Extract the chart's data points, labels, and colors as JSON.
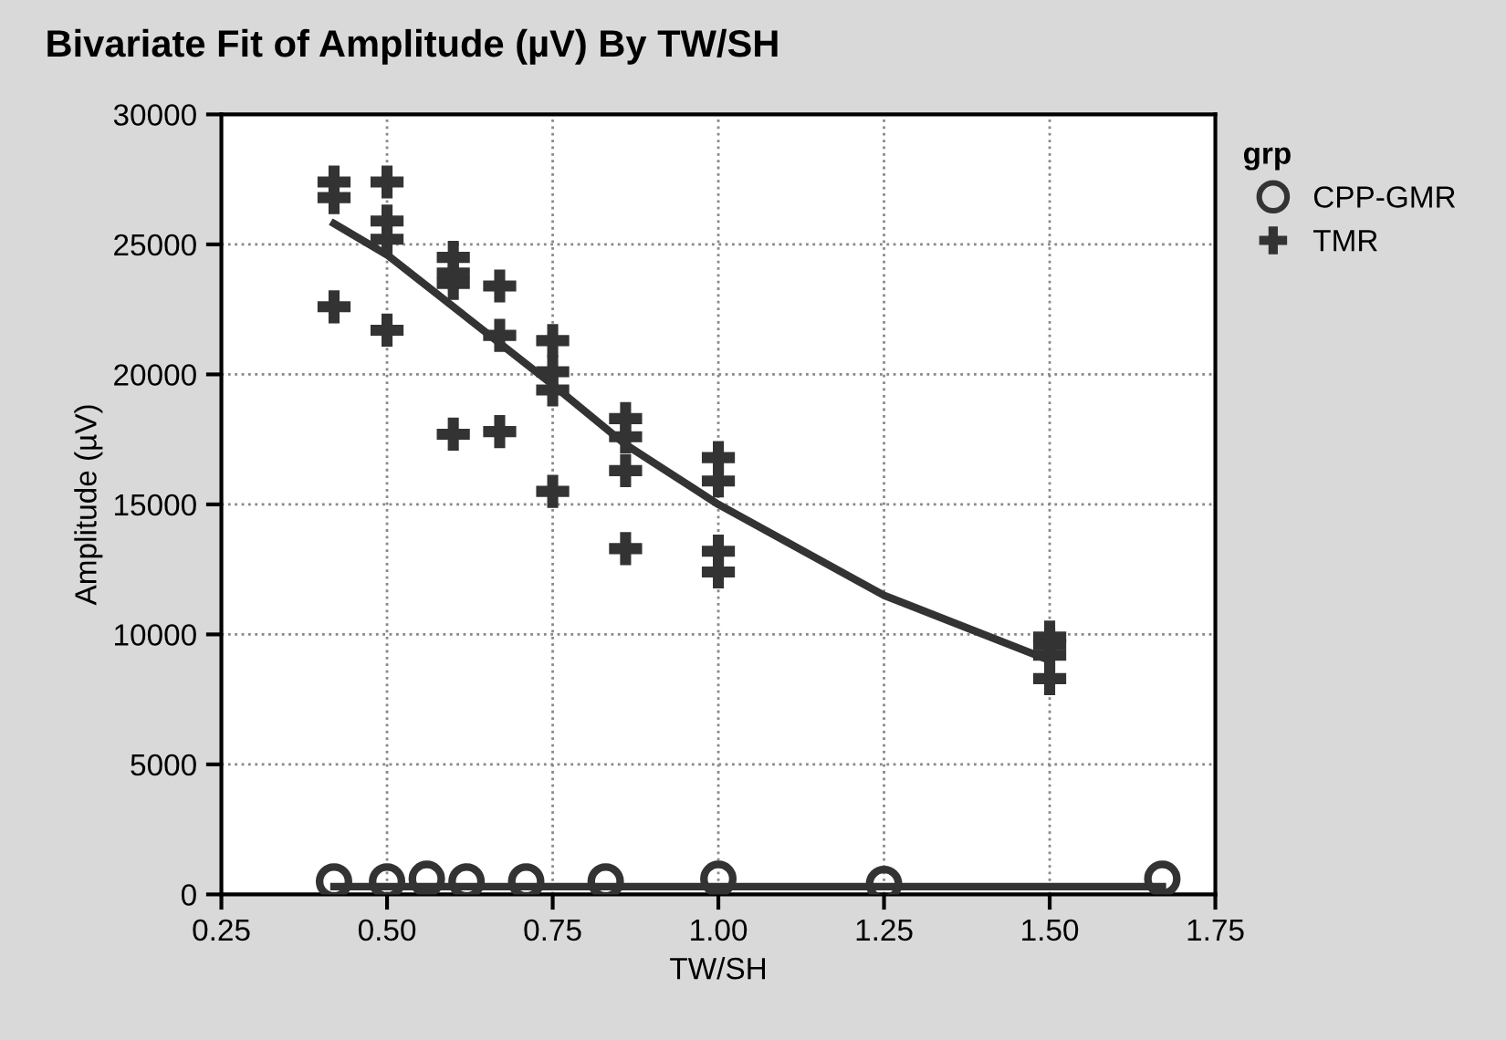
{
  "chart_data": {
    "type": "scatter",
    "title": "Bivariate Fit of Amplitude (µV) By TW/SH",
    "xlabel": "TW/SH",
    "ylabel": "Amplitude (µV)",
    "legend_title": "grp",
    "series": [
      {
        "name": "CPP-GMR",
        "marker": "circle",
        "color": "#333333",
        "x": [
          0.42,
          0.5,
          0.56,
          0.62,
          0.71,
          0.83,
          1.0,
          1.25,
          1.67
        ],
        "values": [
          500,
          500,
          600,
          500,
          500,
          500,
          600,
          400,
          600
        ]
      },
      {
        "name": "TMR",
        "marker": "cross",
        "color": "#333333",
        "x": [
          0.42,
          0.42,
          0.42,
          0.5,
          0.5,
          0.5,
          0.5,
          0.6,
          0.6,
          0.6,
          0.6,
          0.67,
          0.67,
          0.67,
          0.75,
          0.75,
          0.75,
          0.75,
          0.86,
          0.86,
          0.86,
          0.86,
          1.0,
          1.0,
          1.0,
          1.0,
          1.5,
          1.5,
          1.5,
          1.5
        ],
        "values": [
          27400,
          26800,
          22600,
          27400,
          25900,
          25200,
          21700,
          24500,
          23900,
          23500,
          17700,
          23400,
          21500,
          17800,
          21300,
          20100,
          19400,
          15500,
          18300,
          17600,
          16300,
          13300,
          16800,
          15900,
          13200,
          12400,
          9900,
          9600,
          9200,
          8300
        ]
      },
      {
        "type": "line",
        "color": "#333333",
        "x": [
          0.42,
          0.5,
          0.6,
          0.75,
          0.86,
          1.0,
          1.25,
          1.5
        ],
        "values": [
          25800,
          24600,
          22600,
          19600,
          17300,
          15000,
          11500,
          9000
        ]
      },
      {
        "type": "line",
        "color": "#333333",
        "x": [
          0.42,
          1.67
        ],
        "values": [
          300,
          300
        ]
      }
    ],
    "xlim": [
      0.25,
      1.75
    ],
    "xticks": [
      {
        "value": 0.25,
        "label": "0.25"
      },
      {
        "value": 0.5,
        "label": "0.50"
      },
      {
        "value": 0.75,
        "label": "0.75"
      },
      {
        "value": 1.0,
        "label": "1.00"
      },
      {
        "value": 1.25,
        "label": "1.25"
      },
      {
        "value": 1.5,
        "label": "1.50"
      },
      {
        "value": 1.75,
        "label": "1.75"
      }
    ],
    "ylim": [
      0,
      30000
    ],
    "yticks": [
      0,
      5000,
      10000,
      15000,
      20000,
      25000,
      30000
    ],
    "grid": true,
    "legend": "top right"
  }
}
